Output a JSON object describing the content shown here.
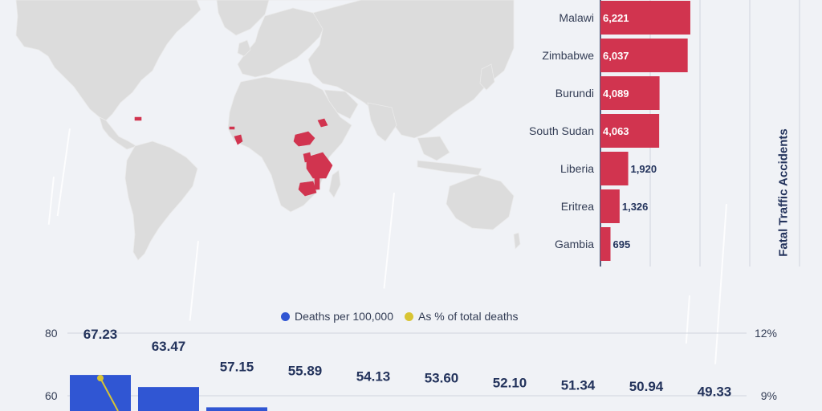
{
  "colors": {
    "background": "#f0f2f6",
    "land": "#dcdcdc",
    "highlight": "#d1344f",
    "blue": "#3056d3",
    "yellow": "#d8c433",
    "axis_text": "#333d55",
    "value_text": "#23335c"
  },
  "map": {
    "land_icon": "world-map",
    "highlighted_regions": [
      "Malawi",
      "Zimbabwe",
      "Burundi",
      "South Sudan",
      "Liberia",
      "Eritrea",
      "Gambia",
      "Caribbean island"
    ]
  },
  "chart_data": [
    {
      "type": "bar",
      "orientation": "horizontal",
      "categories": [
        "Malawi",
        "Zimbabwe",
        "Burundi",
        "South Sudan",
        "Liberia",
        "Eritrea",
        "Gambia"
      ],
      "values": [
        6221,
        6037,
        4089,
        4063,
        1920,
        1326,
        695
      ],
      "value_labels": [
        "6,221",
        "6,037",
        "4,089",
        "4,063",
        "1,920",
        "1,326",
        "695"
      ],
      "ylabel": "Fatal Traffic Accidents",
      "xlim": [
        0,
        19000
      ],
      "grid": true
    },
    {
      "type": "bar",
      "legend": [
        "Deaths per 100,000",
        "As % of total deaths"
      ],
      "legend_placement": "top-center",
      "series": [
        {
          "name": "Deaths per 100,000",
          "values": [
            67.23,
            63.47,
            57.15,
            55.89,
            54.13,
            53.6,
            52.1,
            51.34,
            50.94,
            49.33
          ],
          "value_labels": [
            "67.23",
            "63.47",
            "57.15",
            "55.89",
            "54.13",
            "53.60",
            "52.10",
            "51.34",
            "50.94",
            "49.33"
          ]
        },
        {
          "name": "As % of total deaths",
          "values": [
            9.1,
            8.3,
            null,
            null,
            null,
            null,
            null,
            null,
            null,
            null
          ]
        }
      ],
      "left_ticks": [
        "80",
        "60"
      ],
      "right_ticks": [
        "12%",
        "9%"
      ],
      "ylim_left": [
        40,
        80
      ],
      "ylim_right": [
        6,
        12
      ]
    }
  ]
}
